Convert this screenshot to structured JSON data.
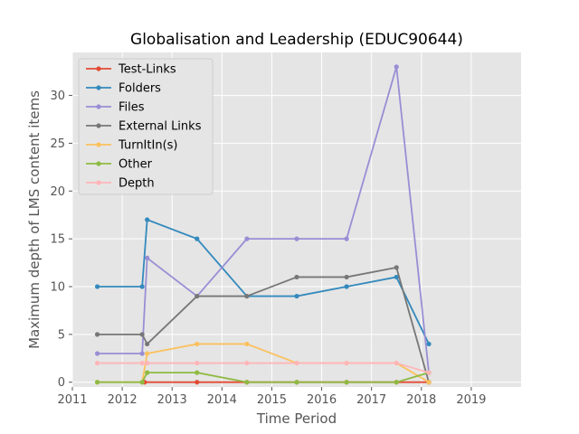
{
  "chart_data": {
    "type": "line",
    "title": "Globalisation and Leadership (EDUC90644)",
    "xlabel": "Time Period",
    "ylabel": "Maximum depth of LMS content items",
    "xlim": [
      2011.0,
      2020.0
    ],
    "ylim": [
      -0.5,
      34.5
    ],
    "x_ticks": [
      2011,
      2012,
      2013,
      2014,
      2015,
      2016,
      2017,
      2018,
      2019
    ],
    "y_ticks": [
      0,
      5,
      10,
      15,
      20,
      25,
      30
    ],
    "grid": true,
    "legend_position": "top-left",
    "series": [
      {
        "name": "Test-Links",
        "color": "#E24A33",
        "x": [
          2012.45,
          2013.5,
          2014.5,
          2015.5,
          2016.5,
          2017.5,
          2018.15
        ],
        "y": [
          0,
          0,
          0,
          0,
          0,
          0,
          0
        ]
      },
      {
        "name": "Folders",
        "color": "#348ABD",
        "x": [
          2011.5,
          2012.4,
          2012.5,
          2013.5,
          2014.5,
          2015.5,
          2016.5,
          2017.5,
          2018.15
        ],
        "y": [
          10,
          10,
          17,
          15,
          9,
          9,
          10,
          11,
          4
        ]
      },
      {
        "name": "Files",
        "color": "#988ED5",
        "x": [
          2011.5,
          2012.4,
          2012.5,
          2013.5,
          2014.5,
          2015.5,
          2016.5,
          2017.5,
          2018.15
        ],
        "y": [
          3,
          3,
          13,
          9,
          15,
          15,
          15,
          33,
          1
        ]
      },
      {
        "name": "External Links",
        "color": "#777777",
        "x": [
          2011.5,
          2012.4,
          2012.5,
          2013.5,
          2014.5,
          2015.5,
          2016.5,
          2017.5,
          2018.15
        ],
        "y": [
          5,
          5,
          4,
          9,
          9,
          11,
          11,
          12,
          0
        ]
      },
      {
        "name": "TurnItIn(s)",
        "color": "#FBC15E",
        "x": [
          2011.5,
          2012.4,
          2012.5,
          2013.5,
          2014.5,
          2015.5,
          2016.5,
          2017.5,
          2018.15
        ],
        "y": [
          0,
          0,
          3,
          4,
          4,
          2,
          2,
          2,
          0
        ]
      },
      {
        "name": "Other",
        "color": "#8EBA42",
        "x": [
          2011.5,
          2012.4,
          2012.5,
          2013.5,
          2014.5,
          2015.5,
          2016.5,
          2017.5,
          2018.15
        ],
        "y": [
          0,
          0,
          1,
          1,
          0,
          0,
          0,
          0,
          1
        ]
      },
      {
        "name": "Depth",
        "color": "#FFB5B8",
        "x": [
          2011.5,
          2012.4,
          2012.5,
          2013.5,
          2014.5,
          2015.5,
          2016.5,
          2017.5,
          2018.15
        ],
        "y": [
          2,
          2,
          2,
          2,
          2,
          2,
          2,
          2,
          1
        ]
      }
    ]
  }
}
